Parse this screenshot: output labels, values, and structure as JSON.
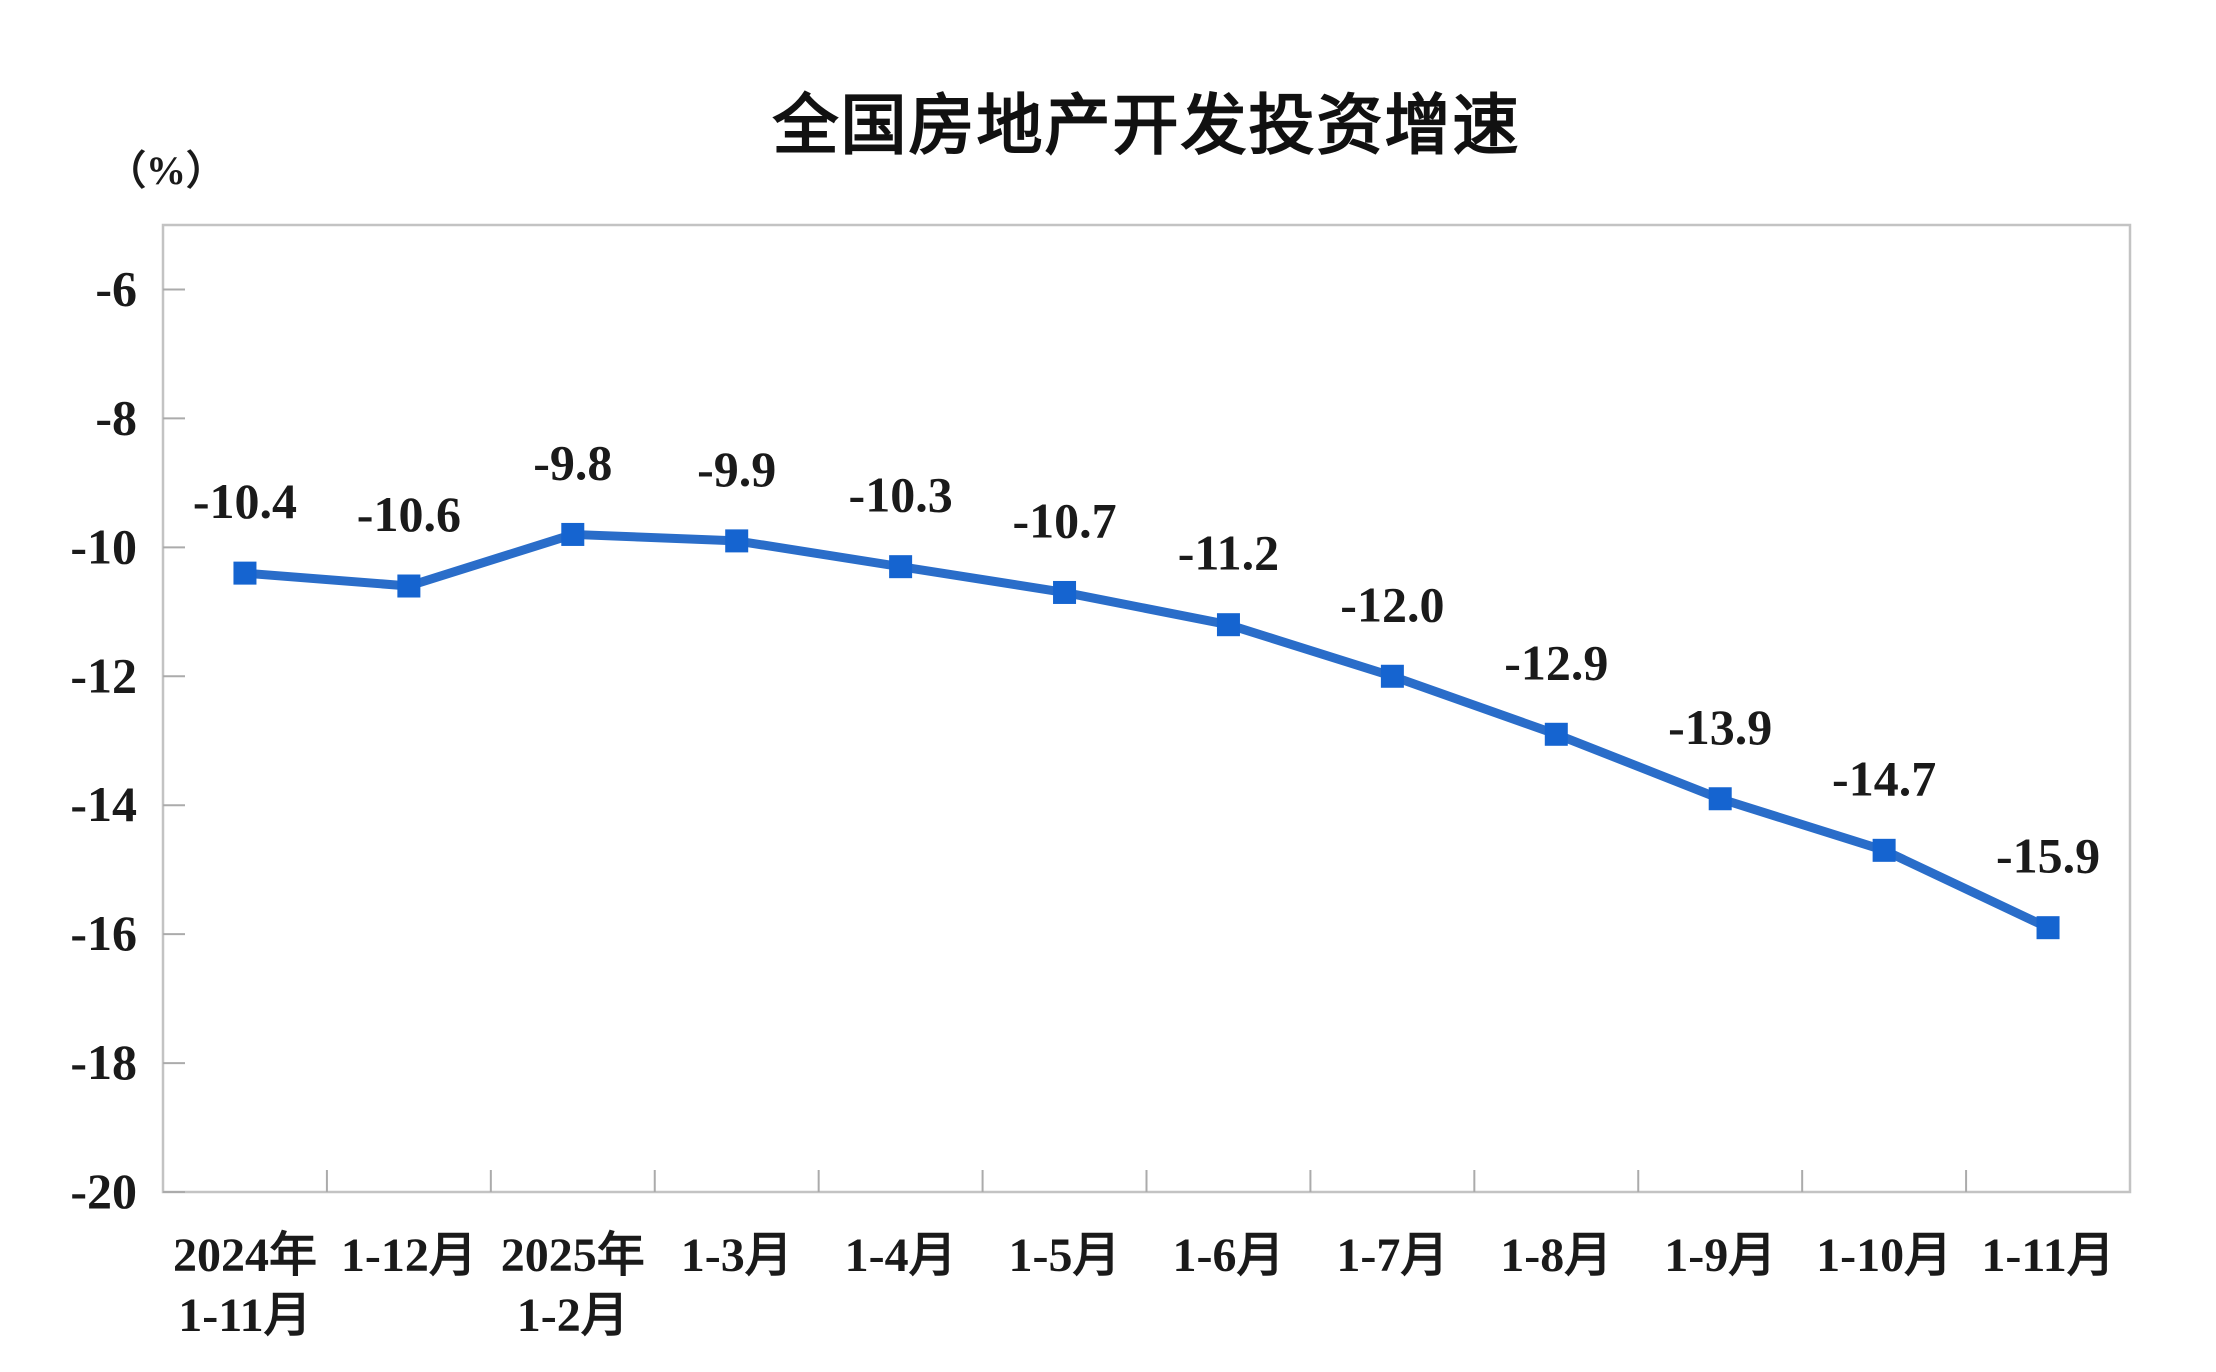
{
  "page": {
    "background": "#ffffff"
  },
  "chart_data": {
    "type": "line",
    "title": "全国房地产开发投资增速",
    "unit_label": "（%）",
    "categories": [
      [
        "2024年",
        "1-11月"
      ],
      [
        "1-12月"
      ],
      [
        "2025年",
        "1-2月"
      ],
      [
        "1-3月"
      ],
      [
        "1-4月"
      ],
      [
        "1-5月"
      ],
      [
        "1-6月"
      ],
      [
        "1-7月"
      ],
      [
        "1-8月"
      ],
      [
        "1-9月"
      ],
      [
        "1-10月"
      ],
      [
        "1-11月"
      ]
    ],
    "values": [
      -10.4,
      -10.6,
      -9.8,
      -9.9,
      -10.3,
      -10.7,
      -11.2,
      -12.0,
      -12.9,
      -13.9,
      -14.7,
      -15.9
    ],
    "point_labels": [
      "-10.4",
      "-10.6",
      "-9.8",
      "-9.9",
      "-10.3",
      "-10.7",
      "-11.2",
      "-12.0",
      "-12.9",
      "-13.9",
      "-14.7",
      "-15.9"
    ],
    "series_name": "全国房地产开发投资增速",
    "xlabel": "",
    "ylabel": "（%）",
    "y_axis": {
      "min": -20,
      "max": -5,
      "tick_values": [
        -6,
        -8,
        -10,
        -12,
        -14,
        -16,
        -18,
        -20
      ],
      "tick_labels": [
        "-6",
        "-8",
        "-10",
        "-12",
        "-14",
        "-16",
        "-18",
        "-20"
      ]
    },
    "grid": "off",
    "legend": "none",
    "marker": "square",
    "line_color": "#2a6dc9",
    "marker_color": "#1564d0",
    "label_color": "#1a1a1a",
    "axis_color": "#c3c3c3",
    "tick_color": "#ababab"
  }
}
